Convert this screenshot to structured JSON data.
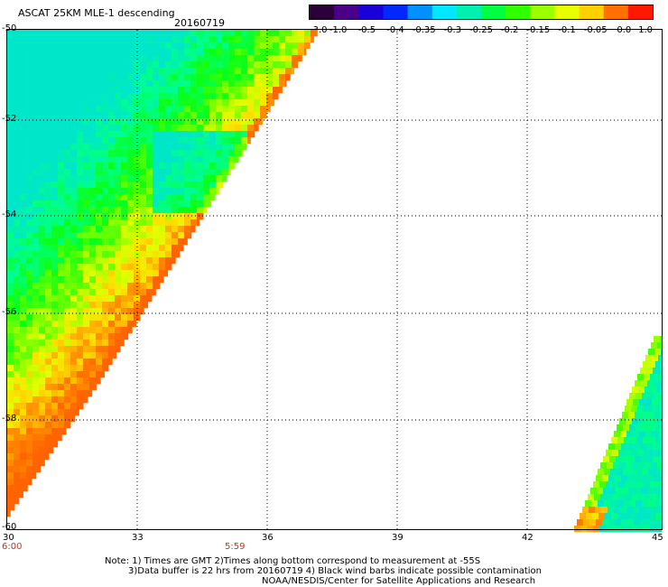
{
  "header": {
    "title": "ASCAT 25KM MLE-1 descending",
    "date": "20160719"
  },
  "colorbar": {
    "labels": [
      "-3.0",
      "-1.0",
      "-0.5",
      "-0.4",
      "-0.35",
      "-0.3",
      "-0.25",
      "-0.2",
      "-0.15",
      "-0.1",
      "-0.05",
      "0.0",
      "1.0"
    ],
    "colors": [
      "#2a0038",
      "#4a0088",
      "#1a00d8",
      "#0028ff",
      "#0090ff",
      "#00e8ff",
      "#00f0b0",
      "#00ff40",
      "#30ff00",
      "#9aff00",
      "#e8ff00",
      "#ffd000",
      "#ff7000",
      "#ff1800"
    ]
  },
  "axes": {
    "lat_labels": [
      "-50",
      "-52",
      "-54",
      "-56",
      "-58",
      "-60"
    ],
    "lon_labels": [
      "30",
      "33",
      "36",
      "39",
      "42",
      "45"
    ],
    "time_labels": [
      "6:00",
      "5:59"
    ]
  },
  "notes": {
    "line1": "Note: 1) Times are GMT 2)Times along bottom correspond to measurement at -55S",
    "line2": "3)Data buffer is 22 hrs from 20160719 4) Black wind barbs indicate possible contamination",
    "line3": "NOAA/NESDIS/Center for Satellite Applications and Research"
  }
}
